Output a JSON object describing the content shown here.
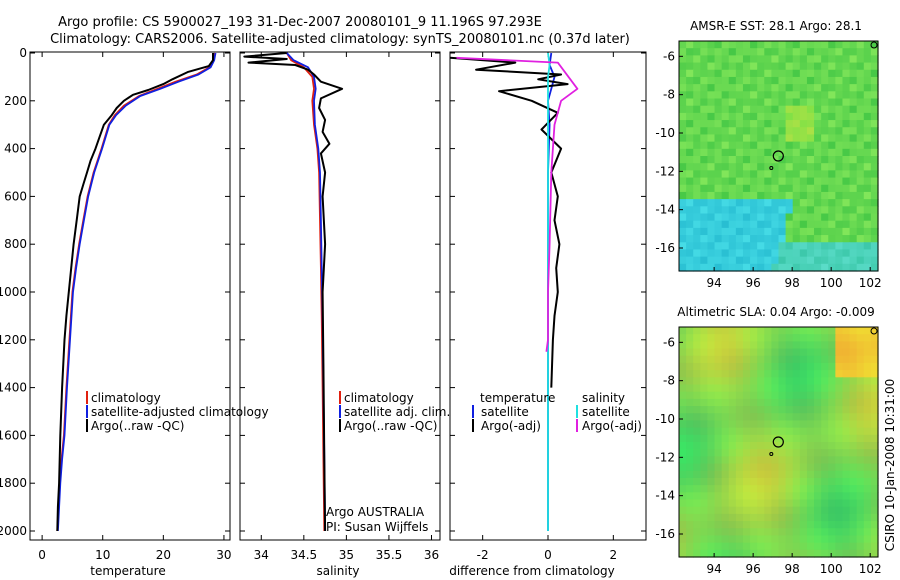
{
  "title": {
    "line1": "Argo profile: CS 5900027_193 31-Dec-2007 20080101_9 11.196S 97.293E",
    "line2": "Climatology: CARS2006. Satellite-adjusted climatology: synTS_20080101.nc (0.37d later)"
  },
  "side_label": "CSIRO 10-Jan-2008 10:31:00",
  "colors": {
    "clim": "#e02010",
    "sat": "#1020e0",
    "argo": "#000000",
    "sat_sal": "#20e0e0",
    "argo_sal": "#e020e0"
  },
  "chart_data": [
    {
      "type": "line",
      "id": "temperature",
      "xlabel": "temperature",
      "xlim": [
        -2,
        31
      ],
      "ylim": [
        0,
        2050
      ],
      "xticks": [
        "0",
        "10",
        "20",
        "30"
      ],
      "yticks": [
        "0",
        "200",
        "400",
        "600",
        "800",
        "1000",
        "1200",
        "1400",
        "1600",
        "1800",
        "2000"
      ],
      "legend": [
        "climatology",
        "satellite-adjusted climatology",
        "Argo(..raw -QC)"
      ],
      "legend_position": "bottom-center",
      "series": [
        {
          "name": "climatology",
          "color": "#e02010",
          "x": [
            28.5,
            28.3,
            27.6,
            25.5,
            22,
            19,
            16,
            13.5,
            12,
            11,
            9.8,
            8.5,
            7.5,
            6.8,
            6.1,
            5.5,
            5,
            4.5,
            4,
            3.6,
            3.2,
            2.9,
            2.7,
            2.5
          ],
          "y": [
            0,
            30,
            60,
            90,
            120,
            150,
            180,
            220,
            260,
            300,
            400,
            500,
            600,
            700,
            800,
            900,
            1000,
            1200,
            1400,
            1600,
            1700,
            1800,
            1900,
            2000
          ]
        },
        {
          "name": "satellite-adjusted climatology",
          "color": "#1020e0",
          "x": [
            28.6,
            28.4,
            27.8,
            25.8,
            22.5,
            19.5,
            16.2,
            13.8,
            12.2,
            11.1,
            9.9,
            8.6,
            7.6,
            6.9,
            6.2,
            5.6,
            5.1,
            4.6,
            4.1,
            3.7,
            3.3,
            3,
            2.8,
            2.6
          ],
          "y": [
            0,
            30,
            60,
            90,
            120,
            150,
            180,
            220,
            260,
            300,
            400,
            500,
            600,
            700,
            800,
            900,
            1000,
            1200,
            1400,
            1600,
            1700,
            1800,
            1900,
            2000
          ]
        },
        {
          "name": "Argo(..raw -QC)",
          "color": "#000000",
          "x": [
            28.2,
            28.2,
            27.5,
            24,
            21.5,
            20,
            17.5,
            15,
            13.5,
            12.3,
            11.5,
            10.2,
            9.5,
            8.8,
            8,
            7.4,
            6.8,
            6.2,
            5.7,
            5.2,
            4.8,
            4.4,
            4,
            3.7,
            3.3,
            3,
            2.8,
            2.6,
            2.5
          ],
          "y": [
            0,
            30,
            55,
            80,
            110,
            130,
            155,
            175,
            200,
            230,
            260,
            300,
            350,
            400,
            450,
            500,
            550,
            600,
            700,
            800,
            900,
            1000,
            1100,
            1200,
            1400,
            1600,
            1800,
            1900,
            2000
          ]
        }
      ]
    },
    {
      "type": "line",
      "id": "salinity",
      "xlabel": "salinity",
      "xlim": [
        33.75,
        36.1
      ],
      "ylim": [
        0,
        2050
      ],
      "xticks": [
        "34",
        "34.5",
        "35",
        "35.5",
        "36"
      ],
      "legend": [
        "climatology",
        "satellite adj. clim.",
        "Argo(..raw -QC)"
      ],
      "legend_position": "bottom-center",
      "annotations": [
        "Argo AUSTRALIA",
        "PI: Susan Wijffels"
      ],
      "series": [
        {
          "name": "climatology",
          "color": "#e02010",
          "x": [
            34.3,
            34.35,
            34.5,
            34.6,
            34.62,
            34.6,
            34.62,
            34.66,
            34.68,
            34.69,
            34.7,
            34.71,
            34.72,
            34.73,
            34.74
          ],
          "y": [
            0,
            30,
            60,
            100,
            150,
            200,
            300,
            400,
            500,
            700,
            900,
            1100,
            1400,
            1700,
            2000
          ]
        },
        {
          "name": "satellite adj. clim.",
          "color": "#1020e0",
          "x": [
            34.3,
            34.38,
            34.55,
            34.62,
            34.64,
            34.62,
            34.63,
            34.67,
            34.69,
            34.7,
            34.71,
            34.72,
            34.73,
            34.74,
            34.75
          ],
          "y": [
            0,
            30,
            60,
            100,
            150,
            200,
            300,
            400,
            500,
            700,
            900,
            1100,
            1400,
            1700,
            2000
          ]
        },
        {
          "name": "Argo(..raw -QC)",
          "color": "#000000",
          "x": [
            34.3,
            33.8,
            34.3,
            33.85,
            34.4,
            34.55,
            34.62,
            34.7,
            34.95,
            34.7,
            34.68,
            34.75,
            34.72,
            34.8,
            34.7,
            34.75,
            34.72,
            34.75,
            34.72,
            34.73,
            34.74,
            34.75
          ],
          "y": [
            0,
            15,
            25,
            40,
            50,
            70,
            90,
            120,
            150,
            190,
            230,
            280,
            330,
            380,
            420,
            500,
            600,
            800,
            1000,
            1300,
            1700,
            2000
          ]
        }
      ]
    },
    {
      "type": "line",
      "id": "difference",
      "xlabel": "difference from climatology",
      "xlim": [
        -3,
        3
      ],
      "ylim": [
        0,
        2050
      ],
      "xticks": [
        "-2",
        "0",
        "2"
      ],
      "legend": [
        "temperature",
        "satellite",
        "Argo(-adj)",
        "salinity",
        "satellite",
        "Argo(-adj)"
      ],
      "legend_position": "bottom-center",
      "series": [
        {
          "name": "temperature satellite",
          "color": "#1020e0",
          "x": [
            0.1,
            0.05,
            0.2,
            0.1,
            0,
            0.05,
            0,
            0,
            0,
            0,
            0
          ],
          "y": [
            0,
            50,
            100,
            150,
            200,
            300,
            500,
            800,
            1200,
            1600,
            2000
          ]
        },
        {
          "name": "temperature Argo(-adj)",
          "color": "#000000",
          "x": [
            -3,
            -1,
            -2.2,
            0.4,
            -0.3,
            0.6,
            -1.5,
            -0.5,
            0.3,
            -0.2,
            0.4,
            0.1,
            0.3,
            0.2,
            0.35,
            0.25,
            0.3,
            0.2,
            0.15,
            0.1
          ],
          "y": [
            20,
            40,
            70,
            90,
            110,
            130,
            160,
            200,
            250,
            320,
            400,
            500,
            600,
            700,
            800,
            900,
            1000,
            1100,
            1200,
            1400
          ]
        },
        {
          "name": "salinity satellite",
          "color": "#20e0e0",
          "x": [
            0,
            0.05,
            0,
            0,
            0,
            0,
            0,
            0
          ],
          "y": [
            0,
            50,
            100,
            300,
            600,
            1000,
            1500,
            2000
          ]
        },
        {
          "name": "salinity Argo(-adj)",
          "color": "#e020e0",
          "x": [
            -2.8,
            0.3,
            0.9,
            0.4,
            0.2,
            0.1,
            0.05,
            0,
            0,
            -0.05
          ],
          "y": [
            20,
            40,
            150,
            200,
            300,
            500,
            800,
            1000,
            1200,
            1250
          ]
        }
      ]
    },
    {
      "type": "heatmap",
      "id": "sst_map",
      "title": "AMSR-E SST: 28.1 Argo: 28.1",
      "xlim": [
        92.2,
        102.4
      ],
      "ylim": [
        -17.2,
        -5.2
      ],
      "xticks": [
        "94",
        "96",
        "98",
        "100",
        "102"
      ],
      "yticks": [
        "-6",
        "-8",
        "-10",
        "-12",
        "-14",
        "-16"
      ],
      "marker": {
        "lon": 97.29,
        "lat": -11.2
      }
    },
    {
      "type": "heatmap",
      "id": "sla_map",
      "title": "Altimetric SLA: 0.04 Argo: -0.009",
      "xlim": [
        92.2,
        102.4
      ],
      "ylim": [
        -17.2,
        -5.2
      ],
      "xticks": [
        "94",
        "96",
        "98",
        "100",
        "102"
      ],
      "yticks": [
        "-6",
        "-8",
        "-10",
        "-12",
        "-14",
        "-16"
      ],
      "marker": {
        "lon": 97.29,
        "lat": -11.2
      }
    }
  ]
}
